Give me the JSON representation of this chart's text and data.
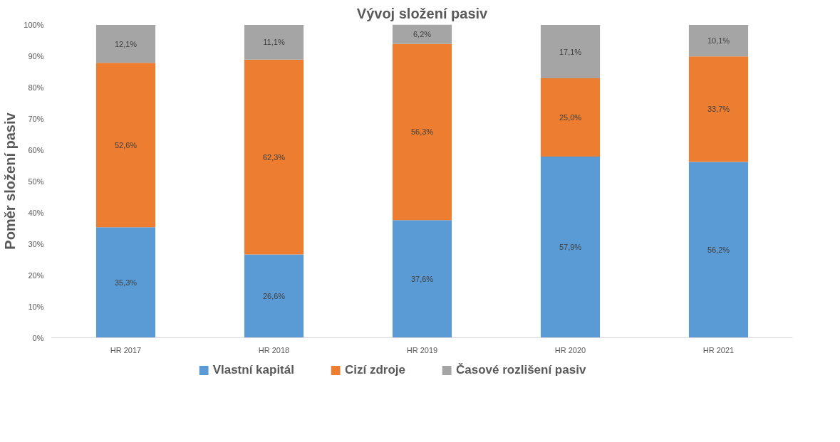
{
  "chart_data": {
    "type": "bar",
    "title": "Vývoj složení pasiv",
    "ylabel": "Poměr složení pasiv",
    "categories": [
      "HR 2017",
      "HR 2018",
      "HR 2019",
      "HR 2020",
      "HR 2021"
    ],
    "stacked": true,
    "series": [
      {
        "name": "Vlastní kapitál",
        "color": "#5b9bd5",
        "values": [
          35.3,
          26.6,
          37.6,
          57.9,
          56.2
        ],
        "value_labels": [
          "35,3%",
          "26,6%",
          "37,6%",
          "57,9%",
          "56,2%"
        ]
      },
      {
        "name": "Cizí zdroje",
        "color": "#ed7d31",
        "values": [
          52.6,
          62.3,
          56.3,
          25.0,
          33.7
        ],
        "value_labels": [
          "52,6%",
          "62,3%",
          "56,3%",
          "25,0%",
          "33,7%"
        ]
      },
      {
        "name": "Časové rozlišení pasiv",
        "color": "#a5a5a5",
        "values": [
          12.1,
          11.1,
          6.2,
          17.1,
          10.1
        ],
        "value_labels": [
          "12,1%",
          "11,1%",
          "6,2%",
          "17,1%",
          "10,1%"
        ]
      }
    ],
    "ylim": [
      0,
      100.1
    ],
    "yticks": [
      {
        "value": 0,
        "label": "0%"
      },
      {
        "value": 10,
        "label": "10%"
      },
      {
        "value": 20,
        "label": "20%"
      },
      {
        "value": 30,
        "label": "30%"
      },
      {
        "value": 40,
        "label": "40%"
      },
      {
        "value": 50,
        "label": "50%"
      },
      {
        "value": 60,
        "label": "60%"
      },
      {
        "value": 70,
        "label": "70%"
      },
      {
        "value": 80,
        "label": "80%"
      },
      {
        "value": 90,
        "label": "90%"
      },
      {
        "value": 100,
        "label": "100%"
      }
    ],
    "grid": false,
    "legend": "bottom"
  }
}
